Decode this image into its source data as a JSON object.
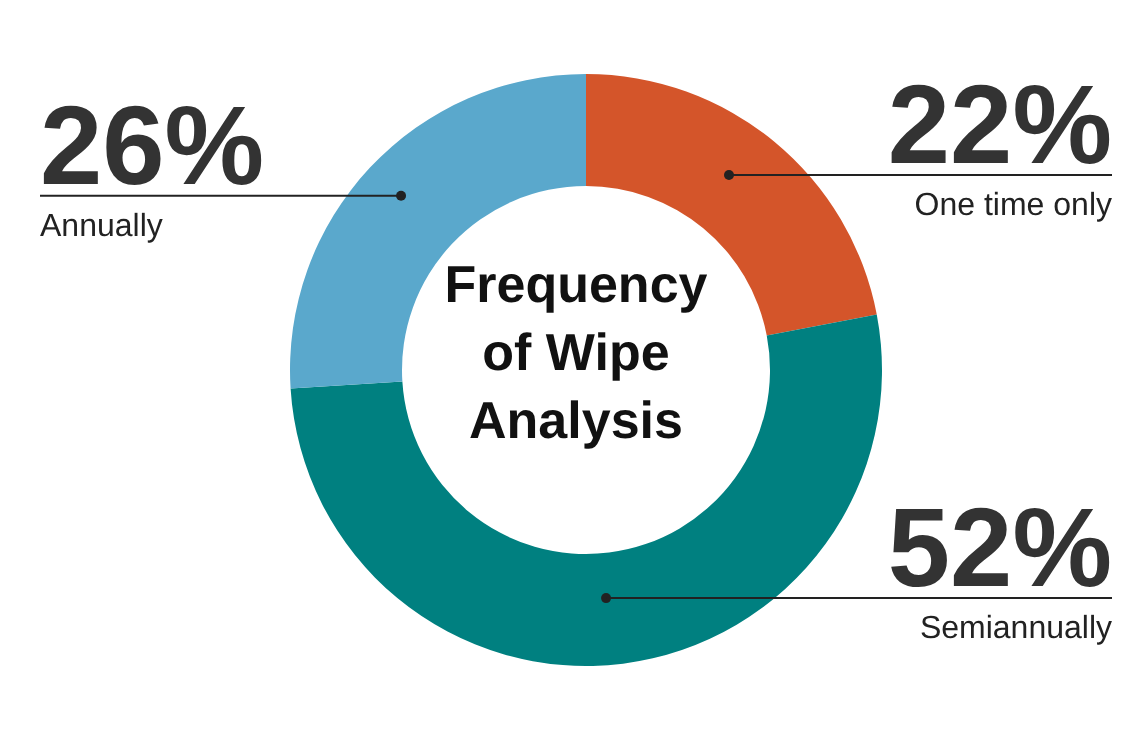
{
  "chart_data": {
    "type": "donut",
    "title": "Frequency of Wipe Analysis",
    "categories": [
      "One time only",
      "Semiannually",
      "Annually"
    ],
    "values": [
      22,
      52,
      26
    ],
    "value_labels": [
      "22%",
      "52%",
      "26%"
    ],
    "colors": [
      "#d4552a",
      "#008080",
      "#5aa8cc"
    ]
  }
}
